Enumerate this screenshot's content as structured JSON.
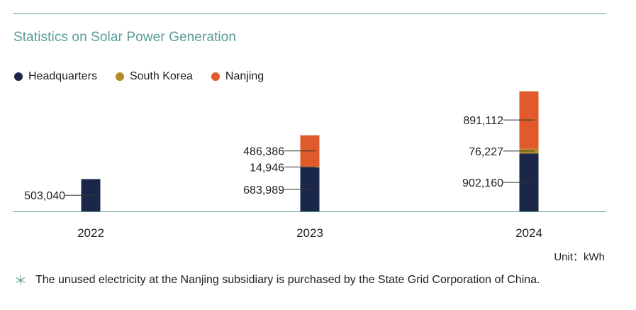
{
  "title": "Statistics on Solar Power Generation",
  "legend": [
    {
      "label": "Headquarters",
      "color": "#1b2749"
    },
    {
      "label": "South Korea",
      "color": "#b58a27"
    },
    {
      "label": "Nanjing",
      "color": "#e05a2b"
    }
  ],
  "unit_label": "Unit：kWh",
  "note": {
    "symbol": "＊",
    "text": "The unused electricity at the Nanjing subsidiary is purchased by the State Grid Corporation of China."
  },
  "chart_data": {
    "type": "bar",
    "stacked": true,
    "categories": [
      "2022",
      "2023",
      "2024"
    ],
    "series": [
      {
        "name": "Headquarters",
        "color": "#1b2749",
        "values": [
          503040,
          683989,
          902160
        ]
      },
      {
        "name": "South Korea",
        "color": "#b58a27",
        "values": [
          0,
          14946,
          76227
        ]
      },
      {
        "name": "Nanjing",
        "color": "#e05a2b",
        "values": [
          0,
          486386,
          891112
        ]
      }
    ],
    "data_labels": [
      [
        "503,040",
        "",
        ""
      ],
      [
        "683,989",
        "14,946",
        "486,386"
      ],
      [
        "902,160",
        "76,227",
        "891,112"
      ]
    ],
    "ylim": [
      0,
      1900000
    ],
    "axis_color": "#5a9c96"
  }
}
